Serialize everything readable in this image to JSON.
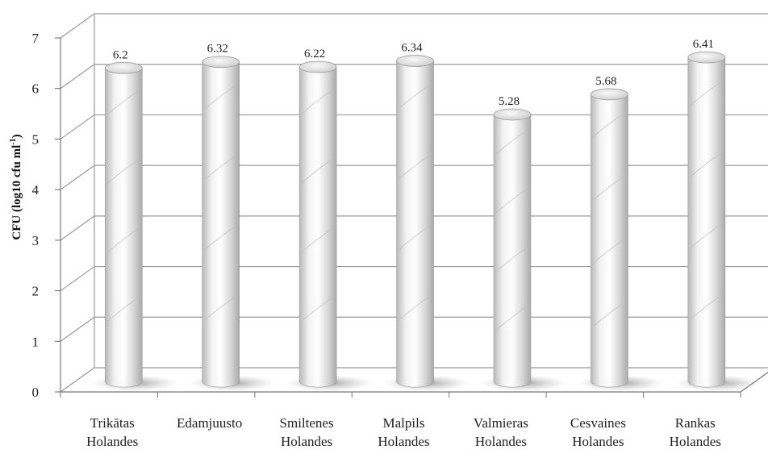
{
  "chart_data": {
    "type": "bar",
    "style": "3d-cylinder",
    "categories": [
      [
        "Trikātas",
        "Holandes"
      ],
      [
        "Edamjuusto"
      ],
      [
        "Smiltenes",
        "Holandes"
      ],
      [
        "Malpils",
        "Holandes"
      ],
      [
        "Valmieras",
        "Holandes"
      ],
      [
        "Cesvaines",
        "Holandes"
      ],
      [
        "Rankas",
        "Holandes"
      ]
    ],
    "values": [
      6.2,
      6.32,
      6.22,
      6.34,
      5.28,
      5.68,
      6.41
    ],
    "data_labels": [
      "6.2",
      "6.32",
      "6.22",
      "6.34",
      "5.28",
      "5.68",
      "6.41"
    ],
    "ylabel": "CFU (log10 cfu ml",
    "ylabel_sup": "-1",
    "ylabel_tail": ")",
    "ylim": [
      0,
      7
    ],
    "yticks": [
      "0",
      "1",
      "2",
      "3",
      "4",
      "5",
      "6",
      "7"
    ],
    "grid": true,
    "legend": "none",
    "bar_color": "#e4e4e4",
    "grid_color": "#9a9a9a"
  }
}
